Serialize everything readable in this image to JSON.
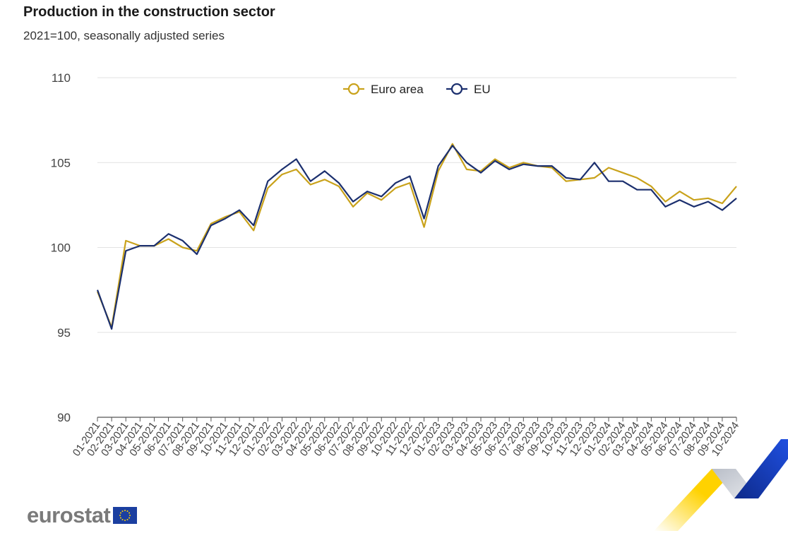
{
  "title": "Production in the construction sector",
  "subtitle": "2021=100, seasonally adjusted series",
  "brand": "eurostat",
  "colors": {
    "euro_area": "#C9A21B",
    "eu": "#1B2F6E",
    "grid": "#E2E2E2",
    "axis": "#555555"
  },
  "chart_data": {
    "type": "line",
    "title": "Production in the construction sector",
    "subtitle": "2021=100, seasonally adjusted series",
    "xlabel": "",
    "ylabel": "",
    "ylim": [
      90,
      110
    ],
    "yticks": [
      90,
      95,
      100,
      105,
      110
    ],
    "grid": true,
    "legend_position": "top-center",
    "categories": [
      "01-2021",
      "02-2021",
      "03-2021",
      "04-2021",
      "05-2021",
      "06-2021",
      "07-2021",
      "08-2021",
      "09-2021",
      "10-2021",
      "11-2021",
      "12-2021",
      "01-2022",
      "02-2022",
      "03-2022",
      "04-2022",
      "05-2022",
      "06-2022",
      "07-2022",
      "08-2022",
      "09-2022",
      "10-2022",
      "11-2022",
      "12-2022",
      "01-2023",
      "02-2023",
      "03-2023",
      "04-2023",
      "05-2023",
      "06-2023",
      "07-2023",
      "08-2023",
      "09-2023",
      "10-2023",
      "11-2023",
      "12-2023",
      "01-2024",
      "02-2024",
      "03-2024",
      "04-2024",
      "05-2024",
      "06-2024",
      "07-2024",
      "08-2024",
      "09-2024",
      "10-2024"
    ],
    "series": [
      {
        "name": "Euro area",
        "color": "#C9A21B",
        "values": [
          97.4,
          95.3,
          100.4,
          100.1,
          100.1,
          100.5,
          100.0,
          99.8,
          101.4,
          101.8,
          102.1,
          101.0,
          103.5,
          104.3,
          104.6,
          103.7,
          104.0,
          103.6,
          102.4,
          103.2,
          102.8,
          103.5,
          103.8,
          101.2,
          104.5,
          106.1,
          104.6,
          104.5,
          105.2,
          104.7,
          105.0,
          104.8,
          104.7,
          103.9,
          104.0,
          104.1,
          104.7,
          104.4,
          104.1,
          103.6,
          102.7,
          103.3,
          102.8,
          102.9,
          102.6,
          103.6
        ]
      },
      {
        "name": "EU",
        "color": "#1B2F6E",
        "values": [
          97.5,
          95.2,
          99.8,
          100.1,
          100.1,
          100.8,
          100.4,
          99.6,
          101.3,
          101.7,
          102.2,
          101.3,
          103.9,
          104.6,
          105.2,
          103.9,
          104.5,
          103.8,
          102.7,
          103.3,
          103.0,
          103.8,
          104.2,
          101.7,
          104.8,
          106.0,
          105.0,
          104.4,
          105.1,
          104.6,
          104.9,
          104.8,
          104.8,
          104.1,
          104.0,
          105.0,
          103.9,
          103.9,
          103.4,
          103.4,
          102.4,
          102.8,
          102.4,
          102.7,
          102.2,
          102.9
        ]
      }
    ]
  }
}
